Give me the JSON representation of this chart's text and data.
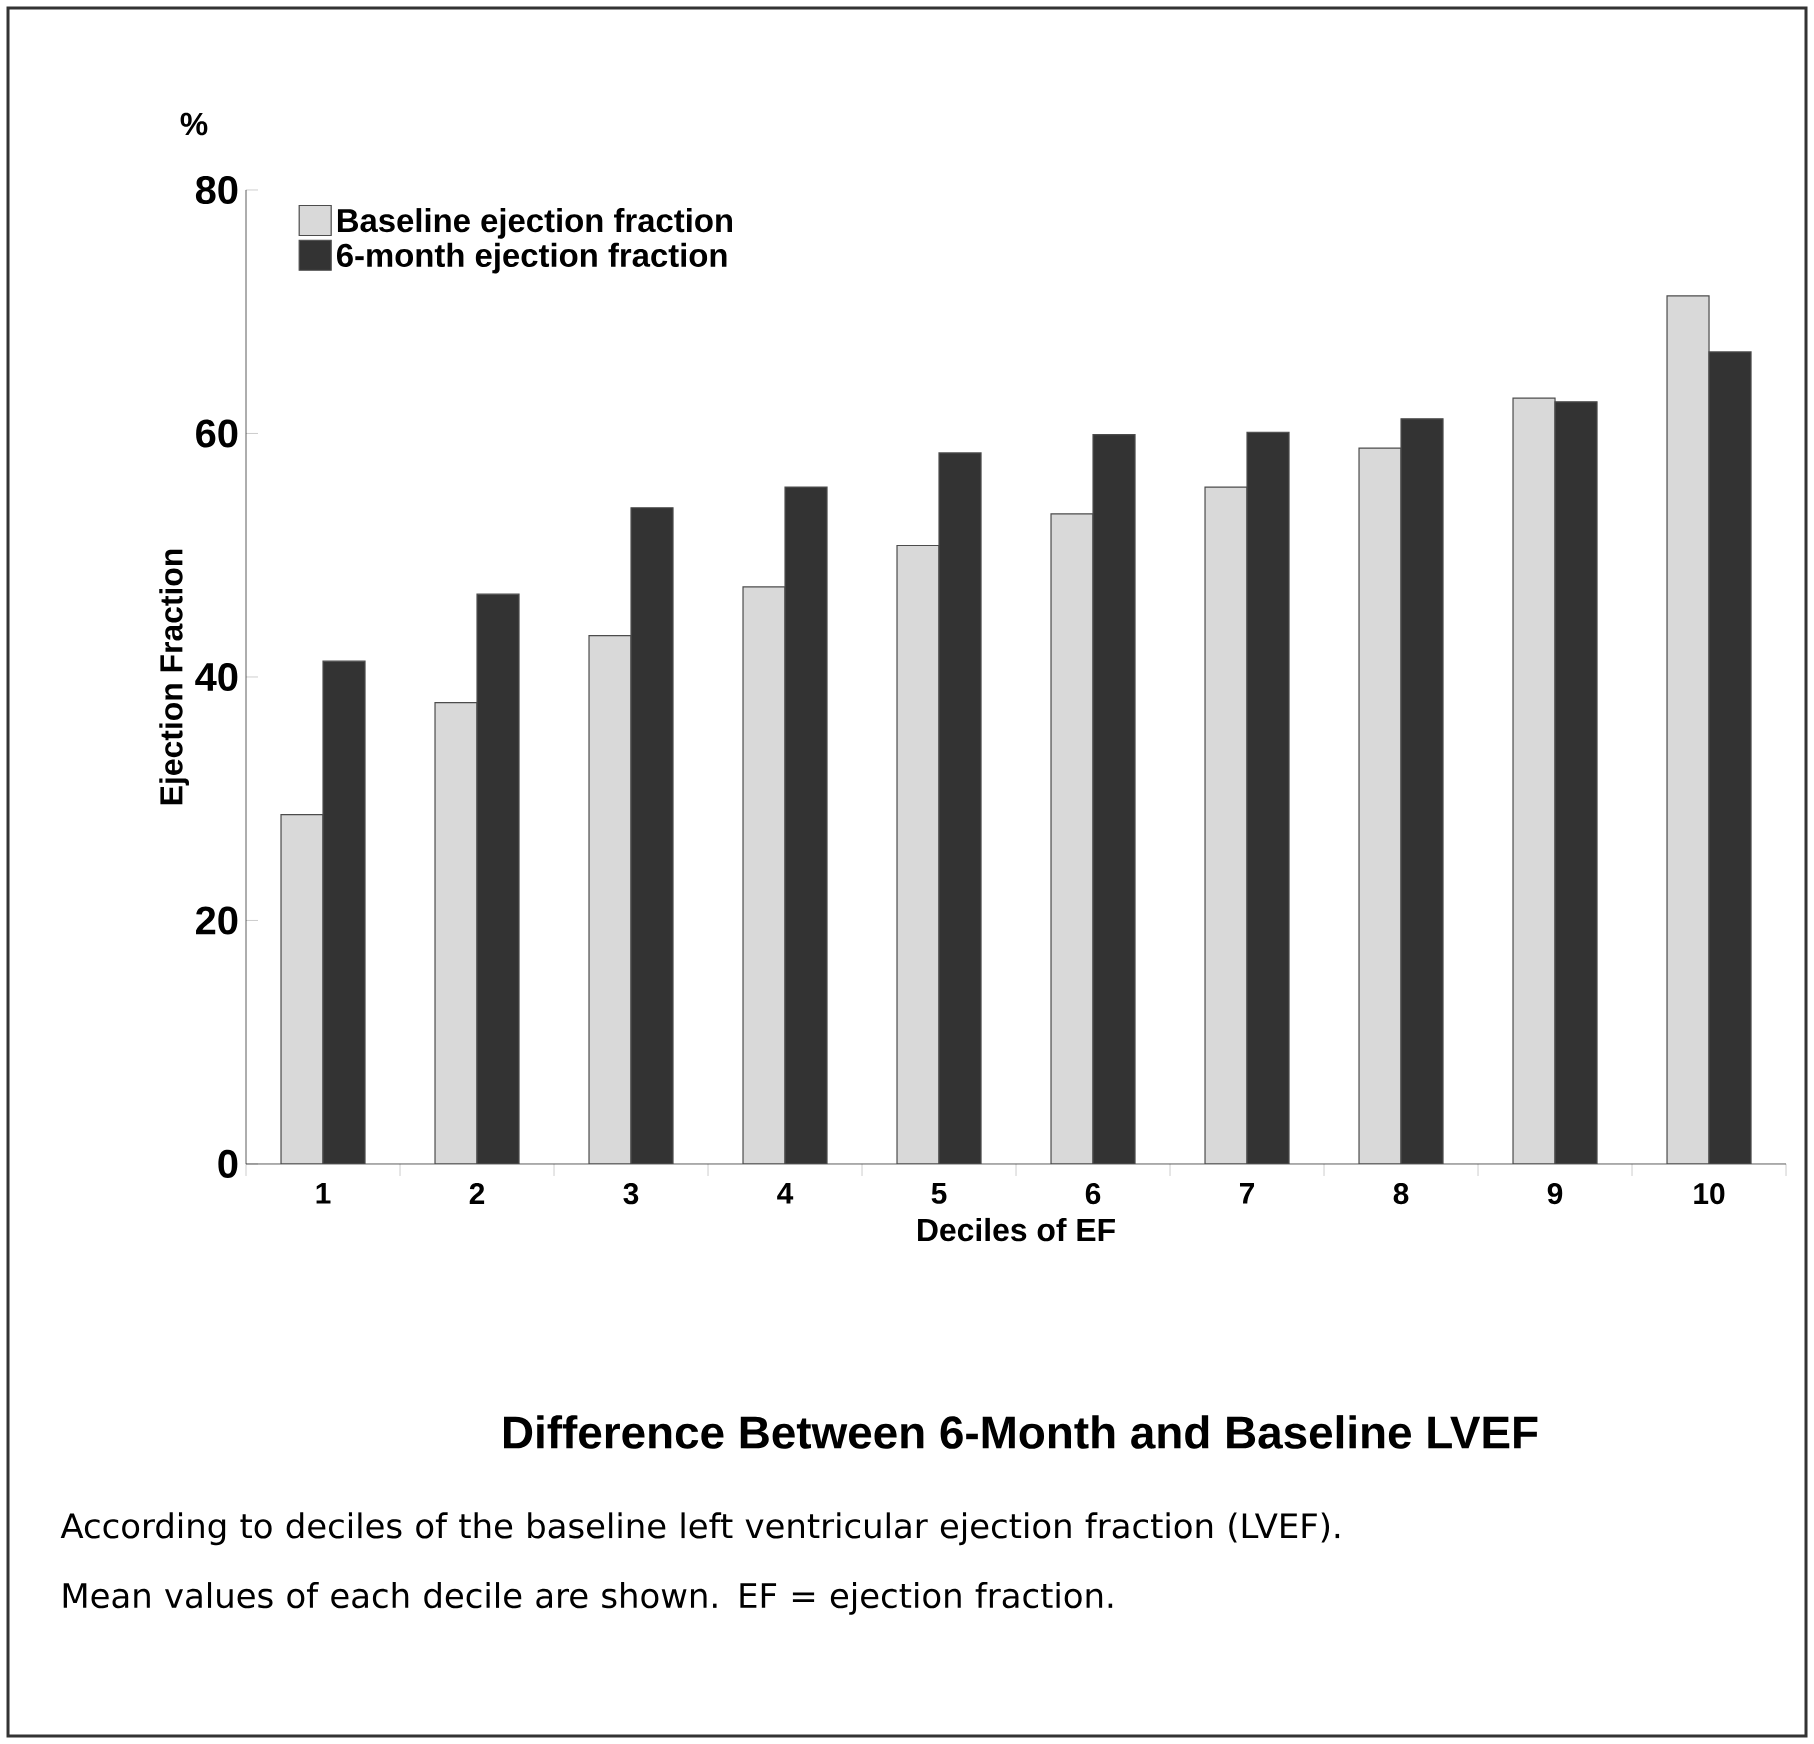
{
  "chart_data": {
    "type": "bar",
    "title": "Difference Between 6-Month and Baseline LVEF",
    "xlabel": "Deciles of EF",
    "ylabel": "Ejection Fraction",
    "annotations": [
      "%",
      "According to deciles of the baseline left ventricular ejection fraction (LVEF). Mean values of each decile are shown. EF = ejection fraction."
    ],
    "categories": [
      "1",
      "2",
      "3",
      "4",
      "5",
      "6",
      "7",
      "8",
      "9",
      "10"
    ],
    "series": [
      {
        "name": "Baseline ejection fraction",
        "color": "#d9d9d9",
        "values": [
          28.7,
          37.9,
          43.4,
          47.4,
          50.8,
          53.4,
          55.6,
          58.8,
          62.9,
          71.3
        ]
      },
      {
        "name": "6-month ejection fraction",
        "color": "#333333",
        "values": [
          41.3,
          46.8,
          53.9,
          55.6,
          58.4,
          59.9,
          60.1,
          61.2,
          62.6,
          66.7
        ]
      }
    ],
    "ylim": [
      0,
      80
    ],
    "yticks": [
      0,
      20,
      40,
      60,
      80
    ],
    "legend": "top left"
  }
}
